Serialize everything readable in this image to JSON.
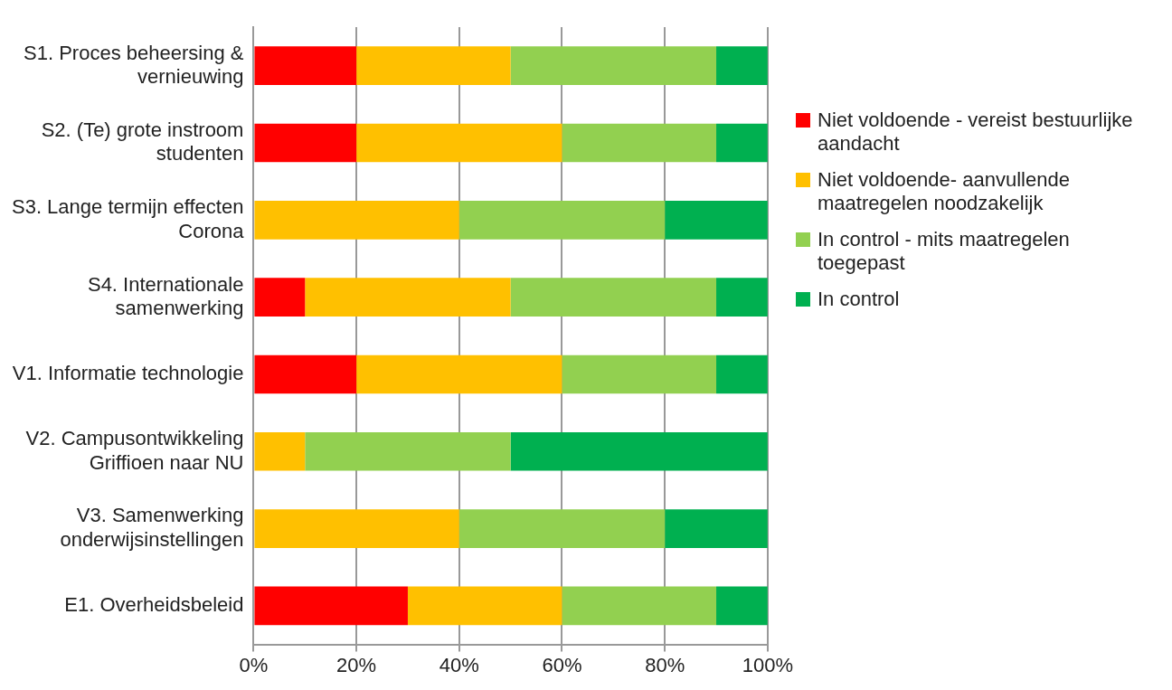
{
  "chart_data": {
    "type": "bar",
    "orientation": "horizontal",
    "stacked": true,
    "categories": [
      "S1. Proces beheersing & vernieuwing",
      "S2. (Te) grote instroom studenten",
      "S3. Lange termijn effecten Corona",
      "S4. Internationale samenwerking",
      "V1. Informatie technologie",
      "V2. Campusontwikkeling Griffioen naar NU",
      "V3. Samenwerking onderwijsinstellingen",
      "E1. Overheidsbeleid"
    ],
    "series": [
      {
        "name": "Niet voldoende - vereist bestuurlijke aandacht",
        "color": "#ff0000",
        "values": [
          20,
          20,
          0,
          10,
          20,
          0,
          0,
          30
        ]
      },
      {
        "name": "Niet voldoende- aanvullende maatregelen noodzakelijk",
        "color": "#ffc000",
        "values": [
          30,
          40,
          40,
          40,
          40,
          10,
          40,
          30
        ]
      },
      {
        "name": "In control - mits maatregelen toegepast",
        "color": "#92d050",
        "values": [
          40,
          30,
          40,
          40,
          30,
          40,
          40,
          30
        ]
      },
      {
        "name": "In control",
        "color": "#00b050",
        "values": [
          10,
          10,
          20,
          10,
          10,
          50,
          20,
          10
        ]
      }
    ],
    "xlim": [
      0,
      100
    ],
    "xticks": [
      {
        "value": 0,
        "label": "0%"
      },
      {
        "value": 20,
        "label": "20%"
      },
      {
        "value": 40,
        "label": "40%"
      },
      {
        "value": 60,
        "label": "60%"
      },
      {
        "value": 80,
        "label": "80%"
      },
      {
        "value": 100,
        "label": "100%"
      }
    ],
    "grid": "x",
    "legend": "right"
  }
}
